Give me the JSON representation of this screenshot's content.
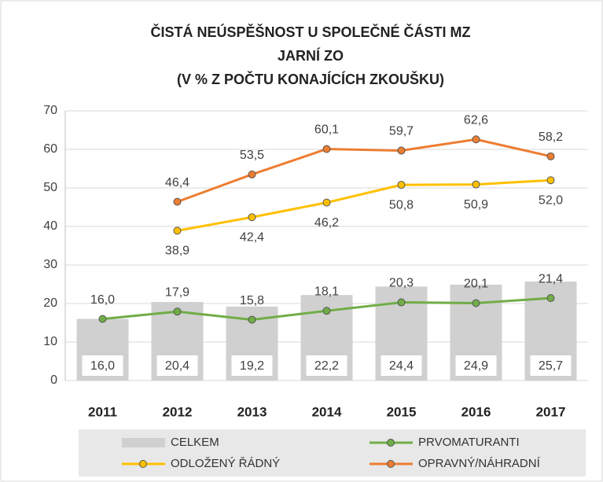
{
  "chart_data": {
    "type": "combo",
    "title": [
      "ČISTÁ NEÚSPĚŠNOST U SPOLEČNÉ ČÁSTI MZ",
      "JARNÍ ZO",
      "(V % Z POČTU KONAJÍCÍCH ZKOUŠKU)"
    ],
    "categories": [
      "2011",
      "2012",
      "2013",
      "2014",
      "2015",
      "2016",
      "2017"
    ],
    "series": [
      {
        "name": "CELKEM",
        "type": "bar",
        "color": "#d0d0d0",
        "values": [
          16.0,
          20.4,
          19.2,
          22.2,
          24.4,
          24.9,
          25.7
        ],
        "value_labels": [
          "16,0",
          "20,4",
          "19,2",
          "22,2",
          "24,4",
          "24,9",
          "25,7"
        ]
      },
      {
        "name": "PRVOMATURANTI",
        "type": "line",
        "color": "#70ad47",
        "values": [
          16.0,
          17.9,
          15.8,
          18.1,
          20.3,
          20.1,
          21.4
        ],
        "value_labels": [
          "16,0",
          "17,9",
          "15,8",
          "18,1",
          "20,3",
          "20,1",
          "21,4"
        ]
      },
      {
        "name": "ODLOŽENÝ ŘÁDNÝ",
        "type": "line",
        "color": "#ffc000",
        "values": [
          null,
          38.9,
          42.4,
          46.2,
          50.8,
          50.9,
          52.0
        ],
        "value_labels": [
          null,
          "38,9",
          "42,4",
          "46,2",
          "50,8",
          "50,9",
          "52,0"
        ]
      },
      {
        "name": "OPRAVNÝ/NÁHRADNÍ",
        "type": "line",
        "color": "#ed7d31",
        "values": [
          null,
          46.4,
          53.5,
          60.1,
          59.7,
          62.6,
          58.2
        ],
        "value_labels": [
          null,
          "46,4",
          "53,5",
          "60,1",
          "59,7",
          "62,6",
          "58,2"
        ]
      }
    ],
    "ylim": [
      0,
      70
    ],
    "yticks": [
      0,
      10,
      20,
      30,
      40,
      50,
      60,
      70
    ],
    "grid": true
  }
}
